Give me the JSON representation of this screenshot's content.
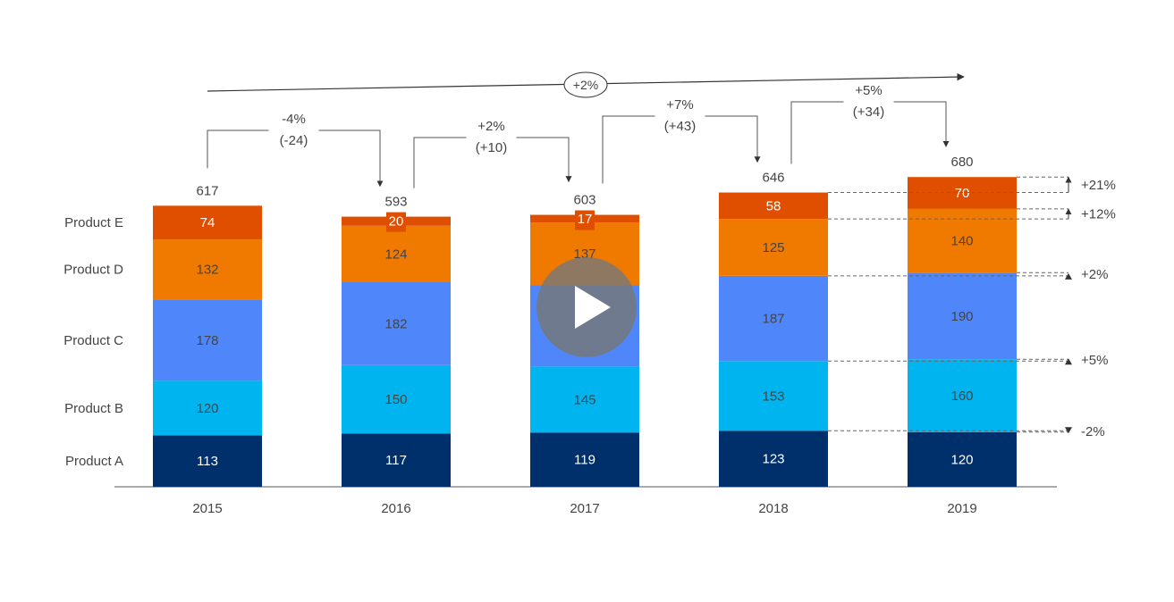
{
  "chart_data": {
    "type": "bar",
    "stacked": true,
    "categories": [
      "2015",
      "2016",
      "2017",
      "2018",
      "2019"
    ],
    "series": [
      {
        "name": "Product A",
        "values": [
          113,
          117,
          119,
          123,
          120
        ],
        "color": "#00306B",
        "label_color": "#ffffff"
      },
      {
        "name": "Product B",
        "values": [
          120,
          150,
          145,
          153,
          160
        ],
        "color": "#00B4F0",
        "label_color": "#444444"
      },
      {
        "name": "Product C",
        "values": [
          178,
          182,
          179,
          187,
          190
        ],
        "color": "#4F87FA",
        "label_color": "#444444"
      },
      {
        "name": "Product D",
        "values": [
          132,
          124,
          137,
          125,
          140
        ],
        "color": "#F07A00",
        "label_color": "#444444"
      },
      {
        "name": "Product E",
        "values": [
          74,
          20,
          17,
          58,
          70
        ],
        "color": "#E04F00",
        "label_color": "#ffffff"
      }
    ],
    "segment_labels": [
      [
        "113",
        "117",
        "119",
        "123",
        "120"
      ],
      [
        "120",
        "150",
        "145",
        "153",
        "160"
      ],
      [
        "178",
        "182",
        "",
        "187",
        "190"
      ],
      [
        "132",
        "124",
        "137",
        "125",
        "140"
      ],
      [
        "74",
        "20",
        "17",
        "58",
        "70"
      ]
    ],
    "totals": [
      "617",
      "593",
      "603",
      "646",
      "680"
    ],
    "totals_values": [
      617,
      593,
      603,
      646,
      680
    ],
    "yoy_changes": [
      {
        "pct": "-4%",
        "abs": "(-24)"
      },
      {
        "pct": "+2%",
        "abs": "(+10)"
      },
      {
        "pct": "+7%",
        "abs": "(+43)"
      },
      {
        "pct": "+5%",
        "abs": "(+34)"
      }
    ],
    "cagr": "+2%",
    "product_changes_2018_2019": [
      {
        "product": "Product A",
        "label": "-2%"
      },
      {
        "product": "Product B",
        "label": "+5%"
      },
      {
        "product": "Product C",
        "label": "+2%"
      },
      {
        "product": "Product D",
        "label": "+12%"
      },
      {
        "product": "Product E",
        "label": "+21%"
      }
    ],
    "ylim": [
      0,
      700
    ],
    "grid": false,
    "legend": "left (row labels)"
  }
}
